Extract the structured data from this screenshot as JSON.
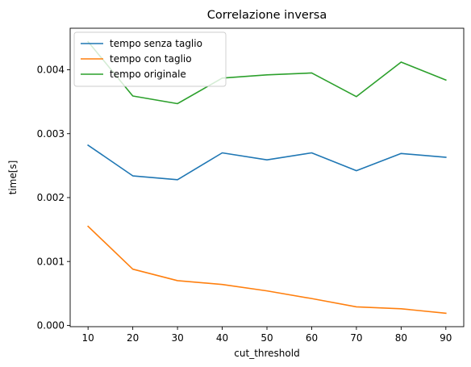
{
  "chart_data": {
    "type": "line",
    "title": "Correlazione inversa",
    "xlabel": "cut_threshold",
    "ylabel": "time[s]",
    "x": [
      10,
      20,
      30,
      40,
      50,
      60,
      70,
      80,
      90
    ],
    "xlim": [
      6,
      94
    ],
    "ylim": [
      -2e-05,
      0.00465
    ],
    "xticks": [
      10,
      20,
      30,
      40,
      50,
      60,
      70,
      80,
      90
    ],
    "yticks": [
      0.0,
      0.001,
      0.002,
      0.003,
      0.004
    ],
    "ytick_labels": [
      "0.000",
      "0.001",
      "0.002",
      "0.003",
      "0.004"
    ],
    "grid": false,
    "legend_position": "top-left",
    "series": [
      {
        "name": "tempo senza taglio",
        "color": "#1f77b4",
        "values": [
          0.00282,
          0.00234,
          0.00228,
          0.0027,
          0.00259,
          0.0027,
          0.00242,
          0.00269,
          0.00263
        ]
      },
      {
        "name": "tempo con taglio",
        "color": "#ff7f0e",
        "values": [
          0.00155,
          0.00088,
          0.0007,
          0.00064,
          0.00054,
          0.00042,
          0.00029,
          0.00026,
          0.00019
        ]
      },
      {
        "name": "tempo originale",
        "color": "#2ca02c",
        "values": [
          0.00444,
          0.00359,
          0.00347,
          0.00387,
          0.00392,
          0.00395,
          0.00358,
          0.00412,
          0.00384
        ]
      }
    ]
  }
}
